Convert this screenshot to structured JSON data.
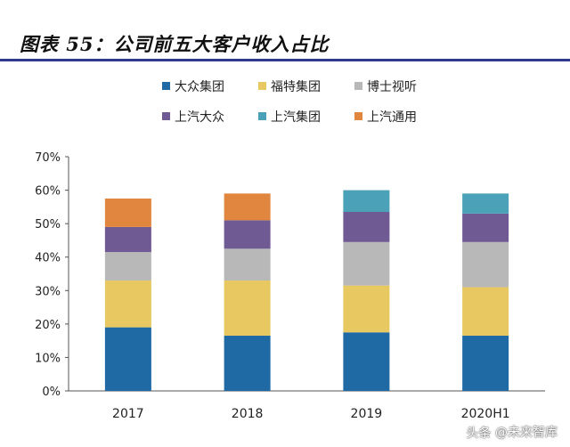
{
  "title": "图表 55：公司前五大客户收入占比",
  "watermark": "头条 @未来智库",
  "watermark_logo": "头条",
  "watermark_text": "@未来智库",
  "chart_data": {
    "type": "bar",
    "stacked": true,
    "categories": [
      "2017",
      "2018",
      "2019",
      "2020H1"
    ],
    "series": [
      {
        "name": "大众集团",
        "color": "#1f6aa5",
        "values": [
          19.0,
          16.5,
          17.5,
          16.5
        ]
      },
      {
        "name": "福特集团",
        "color": "#e8c861",
        "values": [
          14.0,
          16.5,
          14.0,
          14.5
        ]
      },
      {
        "name": "博士视听",
        "color": "#b8b8b8",
        "values": [
          8.5,
          9.5,
          13.0,
          13.5
        ]
      },
      {
        "name": "上汽大众",
        "color": "#6f5a93",
        "values": [
          7.5,
          8.5,
          9.0,
          8.5
        ]
      },
      {
        "name": "上汽集团",
        "color": "#4aa1b8",
        "values": [
          0,
          0,
          6.5,
          6.0
        ]
      },
      {
        "name": "上汽通用",
        "color": "#e0863f",
        "values": [
          8.5,
          8.0,
          0,
          0
        ]
      }
    ],
    "yticks": [
      "0%",
      "10%",
      "20%",
      "30%",
      "40%",
      "50%",
      "60%",
      "70%"
    ],
    "ylim": [
      0,
      70
    ],
    "ytick_step": 10,
    "grid": false,
    "legend_position": "top"
  }
}
